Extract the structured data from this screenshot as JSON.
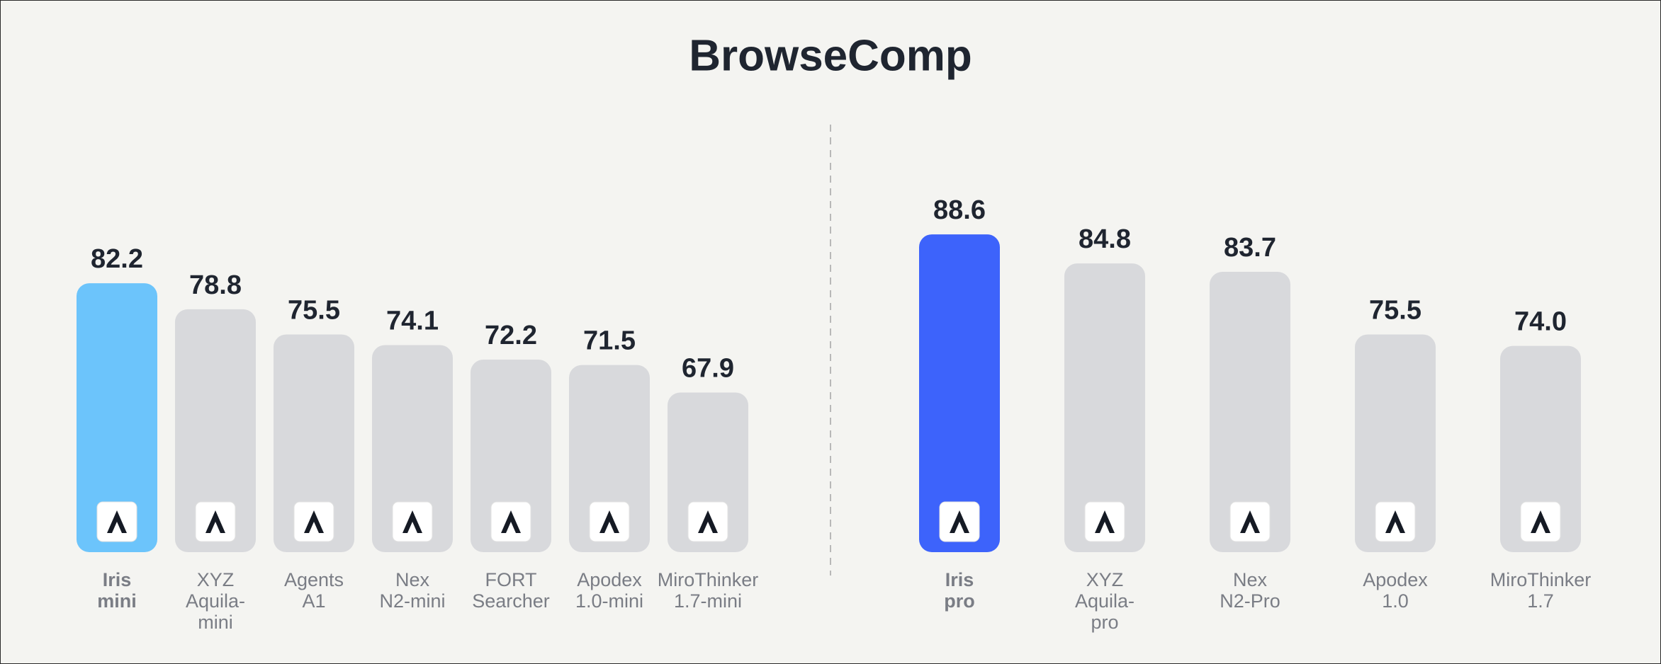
{
  "title": "BrowseComp",
  "chart_data": [
    {
      "type": "bar",
      "categories": [
        "Iris\nmini",
        "XYZ\nAquila-\nmini",
        "Agents\nA1",
        "Nex\nN2-mini",
        "FORT\nSearcher",
        "Apodex\n1.0-mini",
        "MiroThinker\n1.7-mini"
      ],
      "values": [
        82.2,
        78.8,
        75.5,
        74.1,
        72.2,
        71.5,
        67.9
      ],
      "value_labels": [
        "82.2",
        "78.8",
        "75.5",
        "74.1",
        "72.2",
        "71.5",
        "67.9"
      ],
      "colors": [
        "#6cc4fb",
        "#d8d9dc",
        "#d8d9dc",
        "#d8d9dc",
        "#d8d9dc",
        "#d8d9dc",
        "#d8d9dc"
      ],
      "ylim": [
        47,
        95
      ]
    },
    {
      "type": "bar",
      "categories": [
        "Iris\npro",
        "XYZ\nAquila-\npro",
        "Nex\nN2-Pro",
        "Apodex\n1.0",
        "MiroThinker\n1.7"
      ],
      "values": [
        88.6,
        84.8,
        83.7,
        75.5,
        74.0
      ],
      "value_labels": [
        "88.6",
        "84.8",
        "83.7",
        "75.5",
        "74.0"
      ],
      "colors": [
        "#3d63fb",
        "#d8d9dc",
        "#d8d9dc",
        "#d8d9dc",
        "#d8d9dc"
      ],
      "ylim": [
        47,
        95
      ]
    }
  ]
}
